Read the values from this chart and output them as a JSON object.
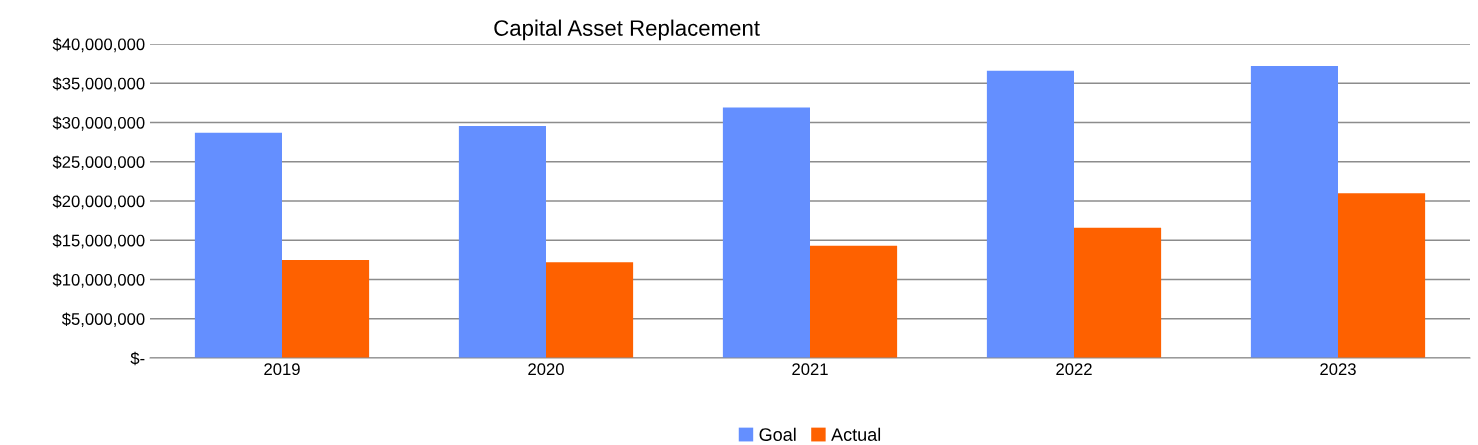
{
  "chart_data": {
    "type": "bar",
    "title": "Capital Asset Replacement",
    "categories": [
      "2019",
      "2020",
      "2021",
      "2022",
      "2023"
    ],
    "series": [
      {
        "name": "Goal",
        "color": "#648fff",
        "values": [
          28700000,
          29550000,
          31900000,
          36600000,
          37200000
        ]
      },
      {
        "name": "Actual",
        "color": "#fe6100",
        "values": [
          12500000,
          12200000,
          14300000,
          16600000,
          21000000
        ]
      }
    ],
    "ylim": [
      0,
      40000000
    ],
    "yticks": [
      {
        "value": 0,
        "label": "$-"
      },
      {
        "value": 5000000,
        "label": "$5,000,000"
      },
      {
        "value": 10000000,
        "label": "$10,000,000"
      },
      {
        "value": 15000000,
        "label": "$15,000,000"
      },
      {
        "value": 20000000,
        "label": "$20,000,000"
      },
      {
        "value": 25000000,
        "label": "$25,000,000"
      },
      {
        "value": 30000000,
        "label": "$30,000,000"
      },
      {
        "value": 35000000,
        "label": "$35,000,000"
      },
      {
        "value": 40000000,
        "label": "$40,000,000"
      }
    ],
    "grid": "y",
    "legend": "bottom"
  }
}
